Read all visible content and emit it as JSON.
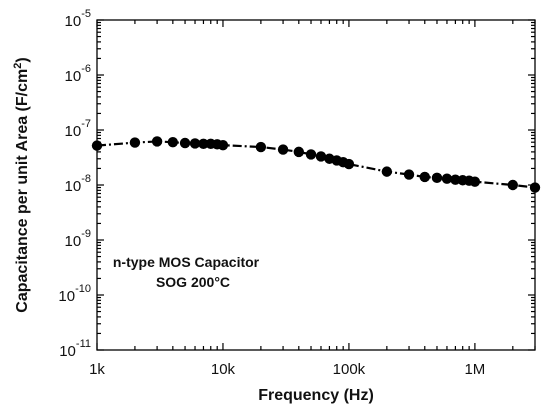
{
  "chart_data": {
    "type": "line",
    "title": "",
    "xlabel": "Frequency (Hz)",
    "ylabel": "Capacitance per unit Area (F/cm",
    "ylabel_sup": "2",
    "ylabel_close": ")",
    "x_scale": "log",
    "y_scale": "log",
    "xlim": [
      1000,
      3000000
    ],
    "ylim": [
      1e-11,
      1e-05
    ],
    "x_ticks": [
      {
        "value": 1000,
        "label": "1k"
      },
      {
        "value": 10000,
        "label": "10k"
      },
      {
        "value": 100000,
        "label": "100k"
      },
      {
        "value": 1000000,
        "label": "1M"
      }
    ],
    "y_ticks": [
      {
        "value": 1e-11,
        "base": "10",
        "exp": "-11"
      },
      {
        "value": 1e-10,
        "base": "10",
        "exp": "-10"
      },
      {
        "value": 1e-09,
        "base": "10",
        "exp": "-9"
      },
      {
        "value": 1e-08,
        "base": "10",
        "exp": "-8"
      },
      {
        "value": 1e-07,
        "base": "10",
        "exp": "-7"
      },
      {
        "value": 1e-06,
        "base": "10",
        "exp": "-6"
      },
      {
        "value": 1e-05,
        "base": "10",
        "exp": "-5"
      }
    ],
    "annotations": [
      "n-type MOS Capacitor",
      "SOG 200°C"
    ],
    "grid": false,
    "series": [
      {
        "color": "#000000",
        "marker": "circle",
        "line_style": "dash-dot",
        "points": [
          {
            "x": 1000,
            "y": 5.2e-08
          },
          {
            "x": 2000,
            "y": 5.9e-08
          },
          {
            "x": 3000,
            "y": 6.2e-08
          },
          {
            "x": 4000,
            "y": 6e-08
          },
          {
            "x": 5000,
            "y": 5.8e-08
          },
          {
            "x": 6000,
            "y": 5.7e-08
          },
          {
            "x": 7000,
            "y": 5.6e-08
          },
          {
            "x": 8000,
            "y": 5.6e-08
          },
          {
            "x": 9000,
            "y": 5.5e-08
          },
          {
            "x": 10000,
            "y": 5.3e-08
          },
          {
            "x": 20000,
            "y": 4.9e-08
          },
          {
            "x": 30000,
            "y": 4.4e-08
          },
          {
            "x": 40000,
            "y": 4e-08
          },
          {
            "x": 50000,
            "y": 3.6e-08
          },
          {
            "x": 60000,
            "y": 3.3e-08
          },
          {
            "x": 70000,
            "y": 3e-08
          },
          {
            "x": 80000,
            "y": 2.8e-08
          },
          {
            "x": 90000,
            "y": 2.6e-08
          },
          {
            "x": 100000,
            "y": 2.4e-08
          },
          {
            "x": 200000,
            "y": 1.75e-08
          },
          {
            "x": 300000,
            "y": 1.55e-08
          },
          {
            "x": 400000,
            "y": 1.4e-08
          },
          {
            "x": 500000,
            "y": 1.35e-08
          },
          {
            "x": 600000,
            "y": 1.3e-08
          },
          {
            "x": 700000,
            "y": 1.25e-08
          },
          {
            "x": 800000,
            "y": 1.22e-08
          },
          {
            "x": 900000,
            "y": 1.2e-08
          },
          {
            "x": 1000000,
            "y": 1.15e-08
          },
          {
            "x": 2000000,
            "y": 1e-08
          },
          {
            "x": 3000000,
            "y": 9e-09
          }
        ]
      }
    ]
  }
}
